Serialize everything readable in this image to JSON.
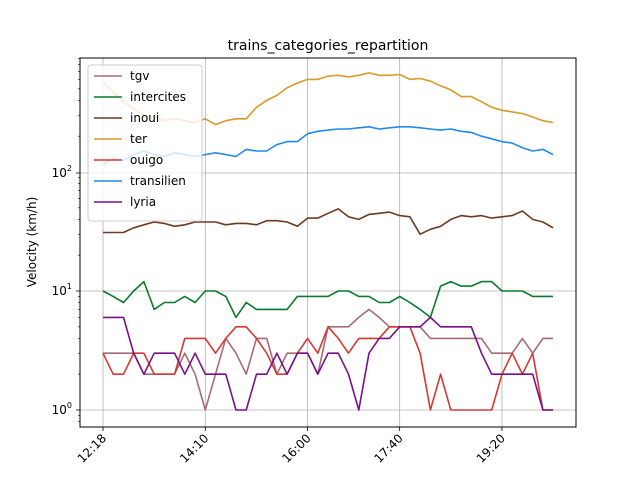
{
  "chart_data": {
    "type": "line",
    "title": "trains_categories_repartition",
    "xlabel": "",
    "ylabel": "Velocity (km/h)",
    "yscale": "log",
    "ylim": [
      0.8,
      850
    ],
    "grid": true,
    "legend_position": "top-left",
    "x_tick_labels": [
      "12:18",
      "14:10",
      "16:00",
      "17:40",
      "19:20"
    ],
    "y_tick_labels": [
      "10^0",
      "10^1",
      "10^2"
    ],
    "x": [
      "12:18",
      "12:30",
      "12:41",
      "12:52",
      "13:04",
      "13:15",
      "13:26",
      "13:37",
      "13:48",
      "14:00",
      "14:10",
      "14:20",
      "14:31",
      "14:42",
      "14:53",
      "15:04",
      "15:15",
      "15:26",
      "15:37",
      "15:48",
      "16:00",
      "16:10",
      "16:20",
      "16:30",
      "16:40",
      "16:50",
      "17:00",
      "17:10",
      "17:20",
      "17:30",
      "17:40",
      "17:50",
      "18:00",
      "18:10",
      "18:20",
      "18:30",
      "18:40",
      "18:50",
      "19:00",
      "19:10",
      "19:20",
      "19:30",
      "19:40",
      "19:50",
      "20:00"
    ],
    "series": [
      {
        "name": "tgv",
        "color": "#a76a79",
        "values": [
          3,
          3,
          3,
          3,
          2,
          2,
          2,
          2,
          3,
          2,
          1,
          2,
          4,
          3,
          2,
          4,
          4,
          2,
          3,
          3,
          3,
          2,
          5,
          5,
          5,
          6,
          7,
          6,
          5,
          5,
          5,
          5,
          4,
          4,
          4,
          4,
          4,
          4,
          3,
          3,
          3,
          4,
          3,
          4,
          4
        ]
      },
      {
        "name": "intercites",
        "color": "#0a7b2c",
        "values": [
          10,
          9,
          8,
          10,
          12,
          7,
          8,
          8,
          9,
          8,
          10,
          10,
          9,
          6,
          8,
          7,
          7,
          7,
          7,
          9,
          9,
          9,
          9,
          10,
          10,
          9,
          9,
          8,
          8,
          9,
          8,
          7,
          6,
          11,
          12,
          11,
          11,
          12,
          12,
          10,
          10,
          10,
          9,
          9,
          9
        ]
      },
      {
        "name": "inoui",
        "color": "#6e3b22",
        "values": [
          31,
          31,
          31,
          34,
          36,
          38,
          37,
          35,
          36,
          38,
          38,
          38,
          36,
          37,
          37,
          36,
          39,
          39,
          38,
          35,
          41,
          41,
          45,
          49,
          42,
          40,
          44,
          45,
          46,
          43,
          42,
          30,
          33,
          35,
          40,
          43,
          42,
          43,
          41,
          42,
          43,
          47,
          40,
          38,
          34
        ]
      },
      {
        "name": "ter",
        "color": "#d99a2b",
        "values": [
          560,
          470,
          390,
          340,
          300,
          290,
          270,
          280,
          270,
          260,
          280,
          250,
          270,
          280,
          280,
          350,
          400,
          440,
          510,
          560,
          600,
          600,
          640,
          650,
          630,
          650,
          680,
          650,
          650,
          660,
          600,
          610,
          580,
          530,
          490,
          430,
          430,
          390,
          350,
          330,
          320,
          310,
          290,
          270,
          260
        ]
      },
      {
        "name": "ouigo",
        "color": "#d43a33",
        "values": [
          3,
          2,
          2,
          3,
          3,
          2,
          2,
          2,
          4,
          4,
          4,
          3,
          4,
          5,
          5,
          4,
          3,
          2,
          2,
          3,
          4,
          3,
          5,
          4,
          3,
          4,
          4,
          4,
          5,
          5,
          5,
          3,
          1,
          2,
          1,
          1,
          1,
          1,
          1,
          2,
          3,
          2,
          3,
          1,
          1
        ]
      },
      {
        "name": "transilien",
        "color": "#2389ee",
        "values": [
          115,
          130,
          125,
          140,
          150,
          140,
          135,
          145,
          140,
          135,
          140,
          145,
          140,
          135,
          155,
          150,
          150,
          170,
          180,
          180,
          210,
          220,
          225,
          230,
          230,
          235,
          240,
          230,
          235,
          240,
          240,
          235,
          230,
          225,
          230,
          220,
          215,
          200,
          190,
          180,
          175,
          160,
          150,
          155,
          140
        ]
      },
      {
        "name": "lyria",
        "color": "#7a0f8c",
        "values": [
          6,
          6,
          6,
          3,
          2,
          3,
          3,
          3,
          2,
          3,
          2,
          2,
          2,
          1,
          1,
          2,
          2,
          3,
          2,
          3,
          3,
          2,
          3,
          3,
          2,
          1,
          3,
          4,
          4,
          5,
          5,
          5,
          6,
          5,
          5,
          5,
          5,
          3,
          2,
          2,
          2,
          2,
          2,
          1,
          1
        ]
      }
    ]
  }
}
